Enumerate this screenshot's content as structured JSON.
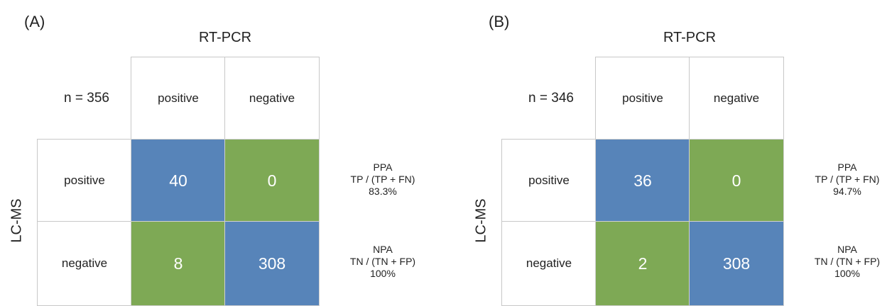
{
  "panels": [
    {
      "label": "(A)",
      "col_title": "RT-PCR",
      "row_title": "LC-MS",
      "n_label": "n = 356",
      "col_headers": [
        "positive",
        "negative"
      ],
      "row_headers": [
        "positive",
        "negative"
      ],
      "cells": {
        "pos_pos": "40",
        "pos_neg": "0",
        "neg_pos": "8",
        "neg_neg": "308"
      },
      "ppa": {
        "name": "PPA",
        "formula": "TP / (TP + FN)",
        "value": "83.3%"
      },
      "npa": {
        "name": "NPA",
        "formula": "TN / (TN + FP)",
        "value": "100%"
      }
    },
    {
      "label": "(B)",
      "col_title": "RT-PCR",
      "row_title": "LC-MS",
      "n_label": "n = 346",
      "col_headers": [
        "positive",
        "negative"
      ],
      "row_headers": [
        "positive",
        "negative"
      ],
      "cells": {
        "pos_pos": "36",
        "pos_neg": "0",
        "neg_pos": "2",
        "neg_neg": "308"
      },
      "ppa": {
        "name": "PPA",
        "formula": "TP / (TP + FN)",
        "value": "94.7%"
      },
      "npa": {
        "name": "NPA",
        "formula": "TN / (TN + FP)",
        "value": "100%"
      }
    }
  ],
  "colors": {
    "match": "#5784b9",
    "mismatch": "#7ea955",
    "grid": "#c8c8c8"
  }
}
